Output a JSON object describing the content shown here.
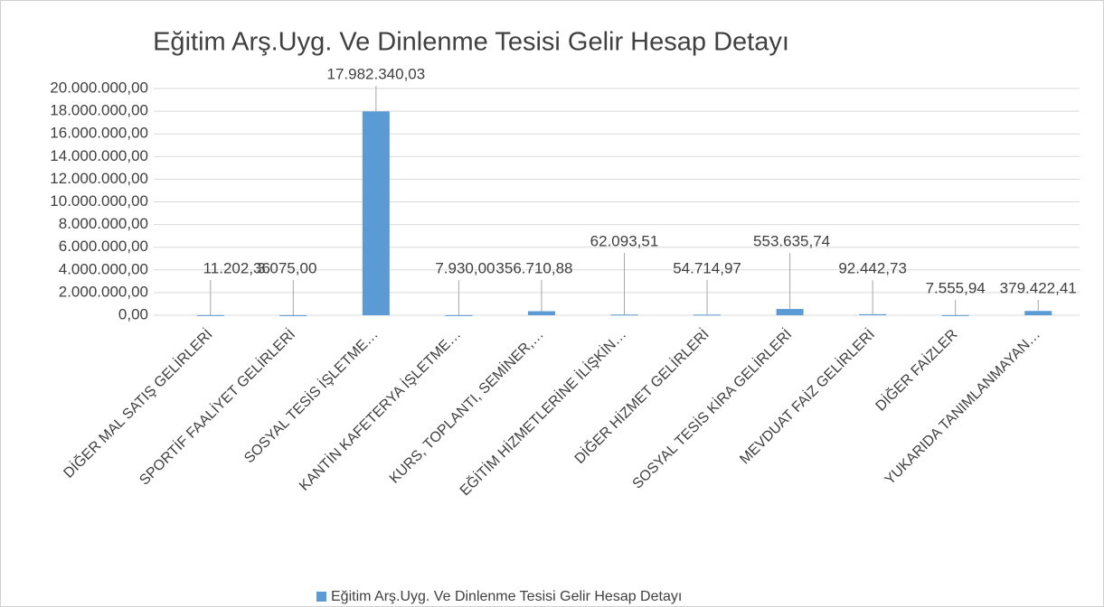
{
  "chart_data": {
    "type": "bar",
    "title": "Eğitim Arş.Uyg. Ve Dinlenme Tesisi Gelir Hesap Detayı",
    "categories": [
      "DİĞER MAL SATIŞ GELİRLERİ",
      "SPORTİF FAALİYET GELİRLERİ",
      "SOSYAL TESİS İŞLETME…",
      "KANTİN KAFETERYA İŞLETME…",
      "KURS, TOPLANTI, SEMİNER,…",
      "EĞİTİM HİZMETLERİNE İLİŞKİN…",
      "DİĞER HİZMET GELİRLERİ",
      "SOSYAL TESİS KİRA GELİRLERİ",
      "MEVDUAT FAİZ GELİRLERİ",
      "DİĞER FAİZLER",
      "YUKARIDA TANIMLANMAYAN…"
    ],
    "series": [
      {
        "name": "Eğitim Arş.Uyg. Ve Dinlenme Tesisi Gelir Hesap Detayı",
        "color": "#5b9bd5",
        "values": [
          11202.36,
          3075.0,
          17982340.03,
          7930.0,
          356710.88,
          62093.51,
          54714.97,
          553635.74,
          92442.73,
          7555.94,
          379422.41
        ],
        "value_labels": [
          "11.202,36",
          "3.075,00",
          "17.982.340,03",
          "7.930,00",
          "356.710,88",
          "62.093,51",
          "54.714,97",
          "553.635,74",
          "92.442,73",
          "7.555,94",
          "379.422,41"
        ]
      }
    ],
    "ylim": [
      0,
      20000000
    ],
    "yticks": [
      {
        "value": 0,
        "label": "0,00"
      },
      {
        "value": 2000000,
        "label": "2.000.000,00"
      },
      {
        "value": 4000000,
        "label": "4.000.000,00"
      },
      {
        "value": 6000000,
        "label": "6.000.000,00"
      },
      {
        "value": 8000000,
        "label": "8.000.000,00"
      },
      {
        "value": 10000000,
        "label": "10.000.000,00"
      },
      {
        "value": 12000000,
        "label": "12.000.000,00"
      },
      {
        "value": 14000000,
        "label": "14.000.000,00"
      },
      {
        "value": 16000000,
        "label": "16.000.000,00"
      },
      {
        "value": 18000000,
        "label": "18.000.000,00"
      },
      {
        "value": 20000000,
        "label": "20.000.000,00"
      }
    ],
    "grid": true,
    "legend": "bottom"
  }
}
